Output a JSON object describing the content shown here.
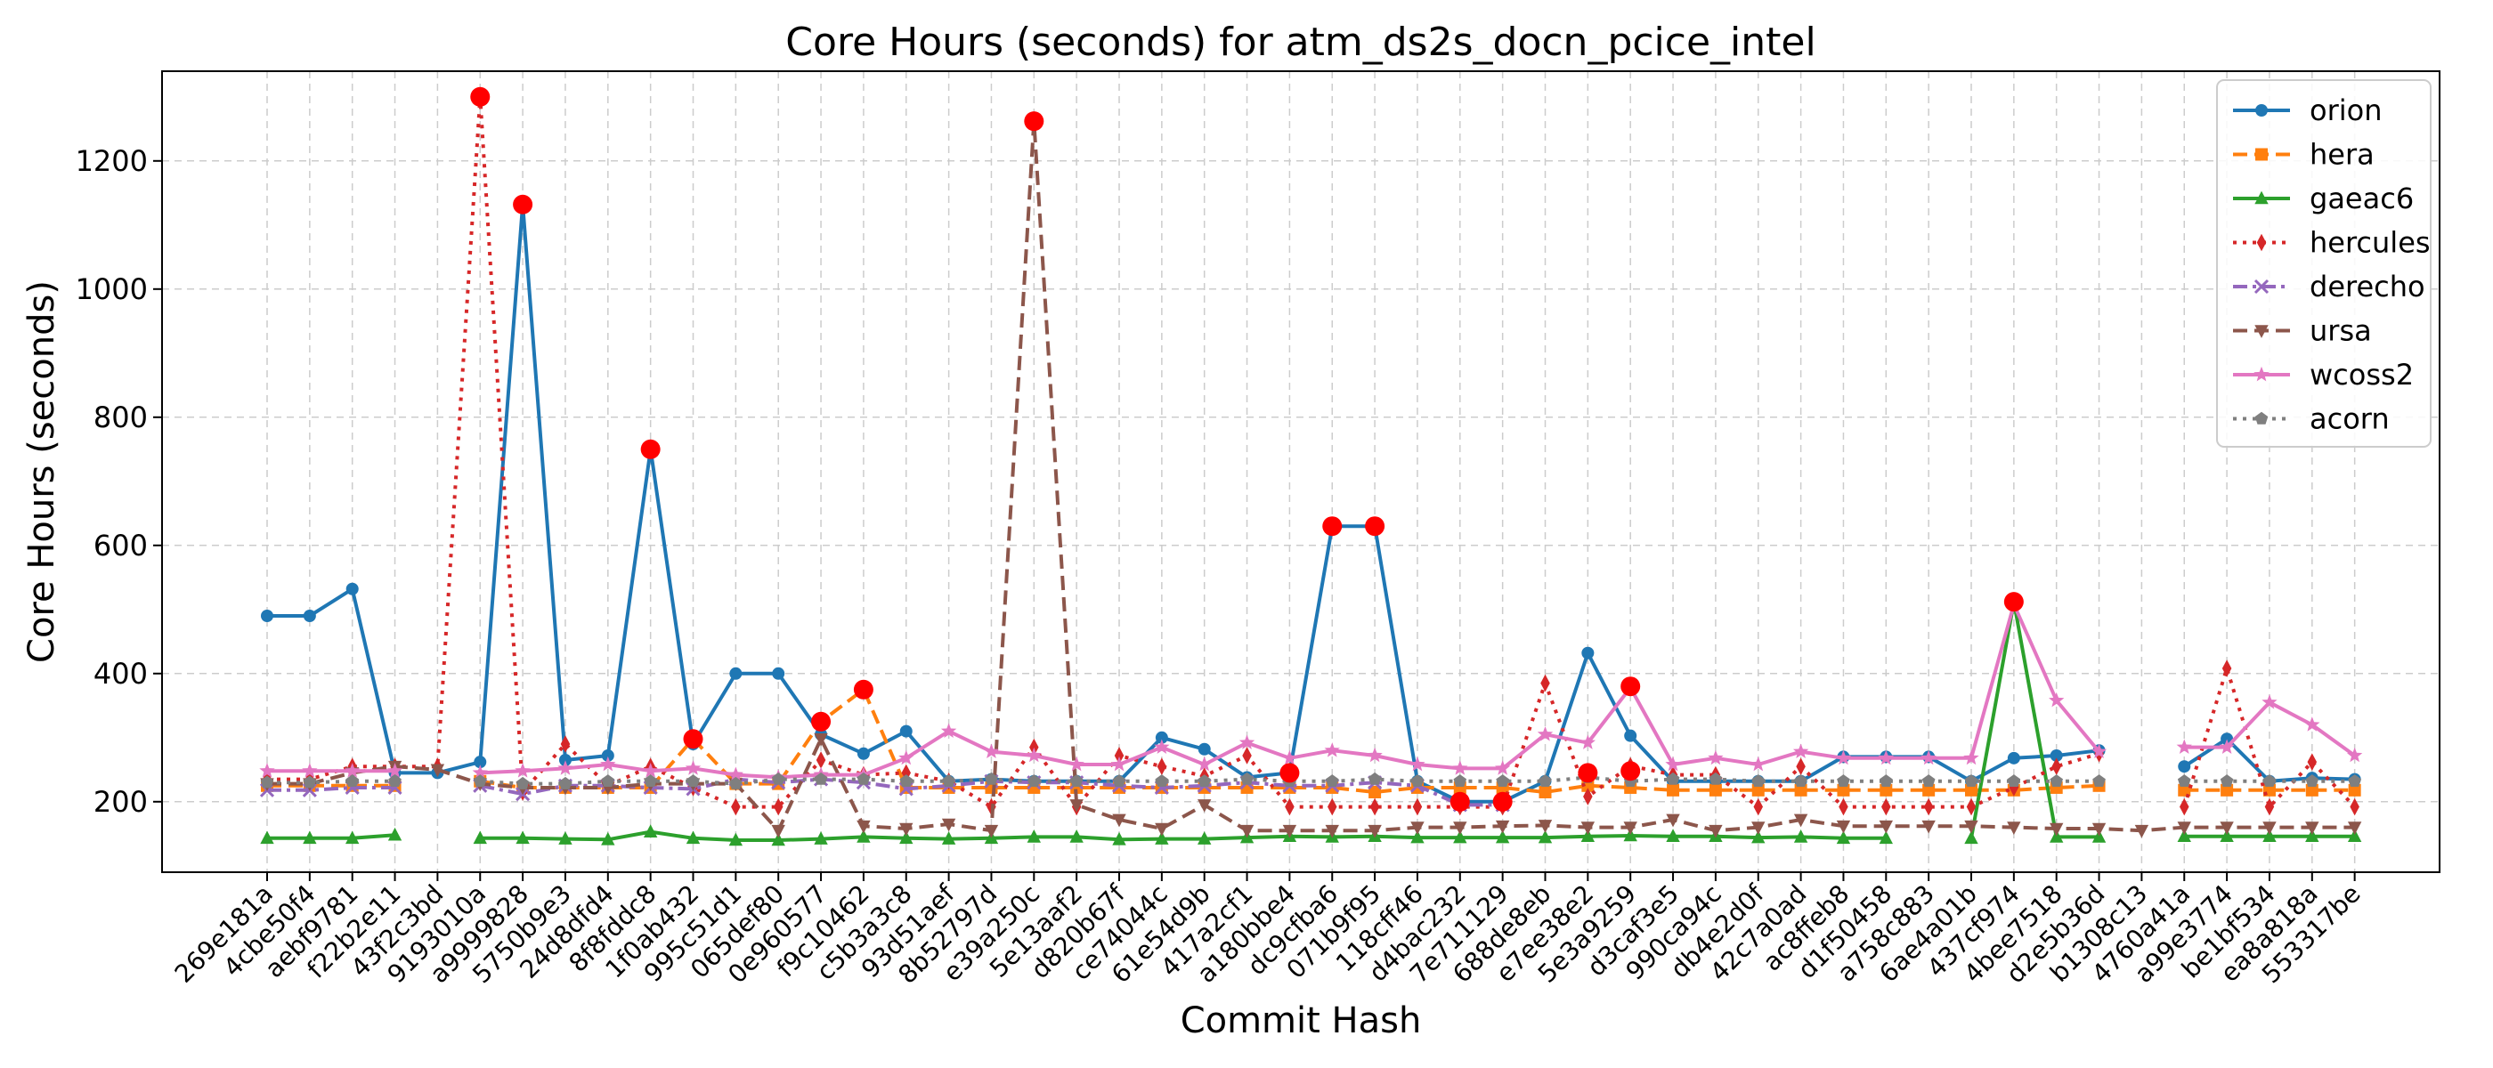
{
  "chart_data": {
    "type": "line",
    "title": "Core Hours (seconds) for atm_ds2s_docn_pcice_intel",
    "xlabel": "Commit Hash",
    "ylabel": "Core Hours (seconds)",
    "ylim": [
      90,
      1340
    ],
    "yticks": [
      200,
      400,
      600,
      800,
      1000,
      1200
    ],
    "grid": true,
    "legend_position": "top-right",
    "x": [
      "269e181a",
      "4cbe50f4",
      "aebf9781",
      "f22b2e11",
      "43f2c3bd",
      "9193010a",
      "a9999828",
      "5750b9e3",
      "24d8dfd4",
      "8f8fddc8",
      "1f0ab432",
      "995c51d1",
      "065def80",
      "0e960577",
      "f9c10462",
      "c5b3a3c8",
      "93d51aef",
      "8b52797d",
      "e39a250c",
      "5e13aaf2",
      "d820b67f",
      "ce74044c",
      "61e54d9b",
      "417a2cf1",
      "a180bbe4",
      "dc9cfba6",
      "071b9f95",
      "118cff46",
      "d4bac232",
      "7e711129",
      "688de8eb",
      "e7ee38e2",
      "5e3a9259",
      "d3caf3e5",
      "990ca94c",
      "db4e2d0f",
      "42c7a0ad",
      "ac8ffeb8",
      "d1f50458",
      "a758c883",
      "6ae4a01b",
      "437cf974",
      "4bee7518",
      "d2e5b36d",
      "b1308c13",
      "4760a41a",
      "a99e3774",
      "be1bf534",
      "ea8a818a",
      "553317be"
    ],
    "series": [
      {
        "name": "orion",
        "color": "#1f77b4",
        "marker": "circle",
        "dash": "solid",
        "values": [
          490,
          490,
          532,
          245,
          245,
          262,
          1132,
          265,
          272,
          750,
          290,
          400,
          400,
          305,
          275,
          310,
          232,
          235,
          232,
          232,
          232,
          300,
          282,
          238,
          245,
          630,
          630,
          232,
          200,
          200,
          232,
          432,
          303,
          232,
          232,
          232,
          232,
          270,
          270,
          270,
          232,
          268,
          272,
          280,
          null,
          255,
          298,
          232,
          237,
          235
        ]
      },
      {
        "name": "hera",
        "color": "#ff7f0e",
        "marker": "square",
        "dash": "dashed",
        "values": [
          225,
          225,
          225,
          225,
          null,
          232,
          222,
          222,
          222,
          222,
          298,
          228,
          228,
          325,
          375,
          222,
          222,
          222,
          222,
          222,
          222,
          222,
          222,
          222,
          222,
          222,
          215,
          222,
          222,
          222,
          215,
          225,
          222,
          218,
          218,
          218,
          218,
          218,
          218,
          218,
          218,
          218,
          222,
          225,
          null,
          218,
          218,
          218,
          218,
          218
        ]
      },
      {
        "name": "gaeac6",
        "color": "#2ca02c",
        "marker": "triangle",
        "dash": "solid",
        "values": [
          143,
          143,
          143,
          148,
          null,
          143,
          143,
          142,
          141,
          153,
          143,
          140,
          140,
          142,
          145,
          143,
          142,
          143,
          145,
          145,
          141,
          142,
          142,
          144,
          146,
          145,
          146,
          144,
          144,
          144,
          144,
          146,
          147,
          146,
          146,
          144,
          145,
          143,
          143,
          null,
          143,
          512,
          145,
          145,
          null,
          146,
          146,
          146,
          146,
          146
        ]
      },
      {
        "name": "hercules",
        "color": "#d62728",
        "marker": "diamond",
        "dash": "dotted",
        "values": [
          235,
          235,
          255,
          255,
          255,
          1300,
          215,
          290,
          225,
          255,
          222,
          192,
          192,
          265,
          242,
          245,
          232,
          192,
          285,
          192,
          272,
          255,
          240,
          272,
          192,
          192,
          192,
          192,
          192,
          192,
          385,
          208,
          256,
          242,
          242,
          192,
          255,
          192,
          192,
          192,
          192,
          222,
          255,
          275,
          null,
          192,
          408,
          192,
          262,
          192
        ]
      },
      {
        "name": "derecho",
        "color": "#9467bd",
        "marker": "x",
        "dash": "dashdot",
        "values": [
          218,
          218,
          222,
          222,
          null,
          225,
          212,
          225,
          225,
          222,
          220,
          235,
          230,
          235,
          230,
          220,
          225,
          232,
          230,
          230,
          225,
          222,
          225,
          230,
          225,
          225,
          230,
          225,
          195,
          195,
          null,
          null,
          null,
          null,
          null,
          null,
          null,
          null,
          null,
          null,
          null,
          null,
          null,
          null,
          null,
          null,
          null,
          null,
          null,
          null
        ]
      },
      {
        "name": "ursa",
        "color": "#8c564b",
        "marker": "triangle-down",
        "dash": "dashed",
        "values": [
          228,
          228,
          245,
          255,
          250,
          228,
          222,
          222,
          222,
          228,
          228,
          228,
          155,
          298,
          162,
          158,
          165,
          155,
          1262,
          195,
          172,
          158,
          195,
          155,
          155,
          155,
          155,
          160,
          160,
          162,
          163,
          160,
          160,
          172,
          155,
          160,
          172,
          162,
          162,
          162,
          162,
          160,
          158,
          158,
          155,
          160,
          160,
          160,
          160,
          160
        ]
      },
      {
        "name": "wcoss2",
        "color": "#e377c2",
        "marker": "star",
        "dash": "solid",
        "values": [
          248,
          248,
          248,
          248,
          null,
          245,
          248,
          252,
          258,
          248,
          252,
          242,
          238,
          242,
          242,
          268,
          310,
          278,
          272,
          258,
          258,
          285,
          258,
          292,
          268,
          280,
          272,
          258,
          252,
          252,
          305,
          292,
          378,
          258,
          268,
          258,
          278,
          268,
          268,
          268,
          268,
          508,
          358,
          278,
          null,
          285,
          285,
          355,
          320,
          272
        ]
      },
      {
        "name": "acorn",
        "color": "#7f7f7f",
        "marker": "pentagon",
        "dash": "dotted",
        "values": [
          230,
          230,
          232,
          232,
          null,
          232,
          228,
          228,
          232,
          232,
          232,
          228,
          235,
          235,
          235,
          232,
          232,
          235,
          232,
          232,
          232,
          232,
          232,
          235,
          232,
          232,
          235,
          232,
          232,
          232,
          232,
          238,
          232,
          235,
          235,
          232,
          232,
          232,
          232,
          232,
          232,
          232,
          232,
          232,
          null,
          232,
          232,
          232,
          232,
          232
        ]
      }
    ],
    "highlights": [
      {
        "x": "9193010a",
        "y": 1300
      },
      {
        "x": "a9999828",
        "y": 1132
      },
      {
        "x": "8f8fddc8",
        "y": 750
      },
      {
        "x": "1f0ab432",
        "y": 298
      },
      {
        "x": "0e960577",
        "y": 325
      },
      {
        "x": "f9c10462",
        "y": 375
      },
      {
        "x": "e39a250c",
        "y": 1262
      },
      {
        "x": "a180bbe4",
        "y": 245
      },
      {
        "x": "dc9cfba6",
        "y": 630
      },
      {
        "x": "071b9f95",
        "y": 630
      },
      {
        "x": "d4bac232",
        "y": 200
      },
      {
        "x": "7e711129",
        "y": 200
      },
      {
        "x": "e7ee38e2",
        "y": 245
      },
      {
        "x": "5e3a9259",
        "y": 248
      },
      {
        "x": "5e3a9259",
        "y": 380
      },
      {
        "x": "437cf974",
        "y": 512
      }
    ]
  }
}
